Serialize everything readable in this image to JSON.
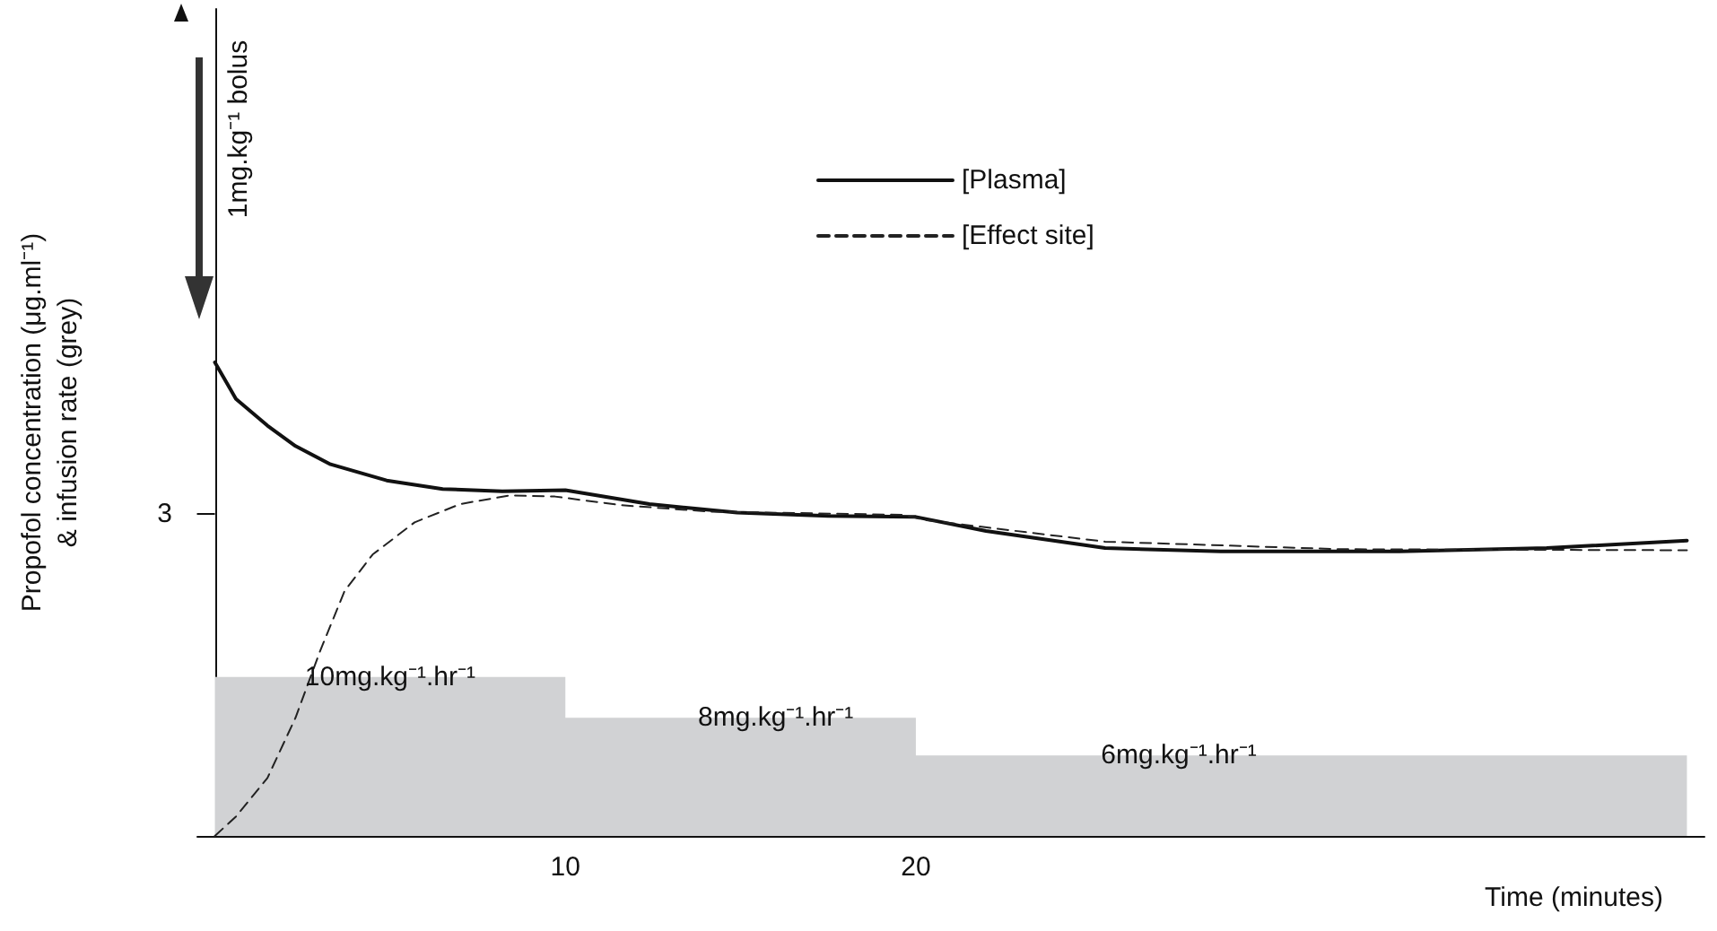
{
  "chart_data": {
    "type": "line",
    "xlabel": "Time (minutes)",
    "ylabel": "Propofol concentration (μg.ml⁻¹)\n& infusion rate (grey)",
    "xlim": [
      -0.5,
      42.5
    ],
    "xticks": [
      10,
      20
    ],
    "ylim": [
      0,
      7.7
    ],
    "yticks": [
      3
    ],
    "grid": false,
    "legend": "top",
    "marker": "none",
    "series": [
      {
        "type": "area",
        "color": "#d1d2d4",
        "x": [
          0,
          10,
          10,
          20,
          20,
          42
        ],
        "values": [
          1.48,
          1.48,
          1.1,
          1.1,
          0.75,
          0.75
        ]
      },
      {
        "name": "[Plasma]",
        "color": "#111111",
        "line_style": "solid",
        "x": [
          0,
          0.6,
          1.5,
          2.3,
          3.3,
          4.9,
          6.5,
          8.2,
          10,
          12.4,
          14.9,
          17.5,
          20,
          22,
          25.4,
          28.7,
          33.8,
          38,
          42
        ],
        "values": [
          4.41,
          4.07,
          3.82,
          3.63,
          3.46,
          3.31,
          3.23,
          3.21,
          3.22,
          3.09,
          3.01,
          2.98,
          2.97,
          2.84,
          2.68,
          2.65,
          2.65,
          2.68,
          2.75
        ]
      },
      {
        "name": "[Effect site]",
        "color": "#222222",
        "line_style": "dashed",
        "x": [
          0,
          0.6,
          1.5,
          2.3,
          3,
          3.7,
          4.5,
          5.7,
          7,
          8.4,
          9.7,
          11.6,
          14.1,
          19.6,
          20.3,
          25.4,
          32.1,
          42
        ],
        "values": [
          0,
          0.18,
          0.54,
          1.1,
          1.72,
          2.28,
          2.62,
          2.92,
          3.09,
          3.17,
          3.16,
          3.08,
          3.02,
          2.99,
          2.94,
          2.74,
          2.67,
          2.66
        ]
      }
    ],
    "annotations": [
      "1mg.kg⁻¹ bolus",
      {
        "text": "10mg.kg⁻¹.hr⁻¹",
        "x": 5,
        "y": 1.48
      },
      {
        "text": "8mg.kg⁻¹.hr⁻¹",
        "x": 16,
        "y": 1.1
      },
      {
        "text": "6mg.kg⁻¹.hr⁻¹",
        "x": 27.5,
        "y": 0.75
      }
    ]
  }
}
